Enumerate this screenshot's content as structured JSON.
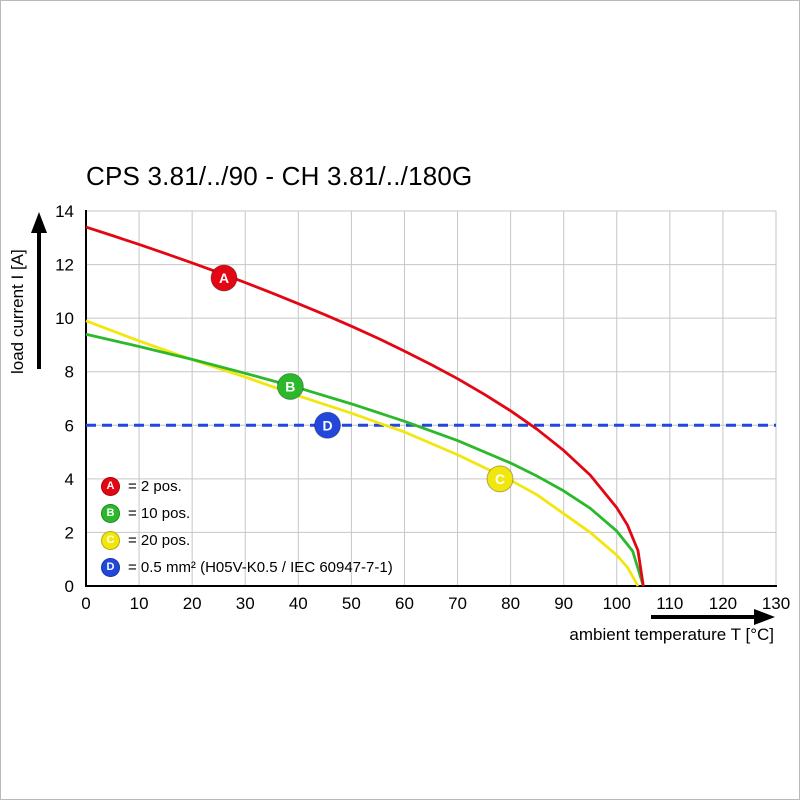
{
  "title": "CPS 3.81/../90 - CH 3.81/../180G",
  "chart_data": {
    "type": "line",
    "title": "CPS 3.81/../90 - CH 3.81/../180G",
    "xlabel": "ambient temperature T [°C]",
    "ylabel": "load current I [A]",
    "xlim": [
      0,
      130
    ],
    "ylim": [
      0,
      14
    ],
    "xticks": [
      0,
      10,
      20,
      30,
      40,
      50,
      60,
      70,
      80,
      90,
      100,
      110,
      120,
      130
    ],
    "yticks": [
      0,
      2,
      4,
      6,
      8,
      10,
      12,
      14
    ],
    "grid": true,
    "legend_position": "bottom-left-inside",
    "colors": {
      "grid": "#c6c6c6",
      "axis": "#000000"
    },
    "series": [
      {
        "name": "A",
        "label": "= 2 pos.",
        "color": "#e30613",
        "dash": false,
        "marker_at": [
          26,
          11.5
        ],
        "points": [
          [
            0,
            13.4
          ],
          [
            5,
            13.08
          ],
          [
            10,
            12.75
          ],
          [
            15,
            12.41
          ],
          [
            20,
            12.06
          ],
          [
            25,
            11.7
          ],
          [
            30,
            11.33
          ],
          [
            35,
            10.94
          ],
          [
            40,
            10.54
          ],
          [
            45,
            10.13
          ],
          [
            50,
            9.7
          ],
          [
            55,
            9.25
          ],
          [
            60,
            8.77
          ],
          [
            65,
            8.27
          ],
          [
            70,
            7.74
          ],
          [
            75,
            7.16
          ],
          [
            80,
            6.54
          ],
          [
            85,
            5.85
          ],
          [
            90,
            5.06
          ],
          [
            95,
            4.14
          ],
          [
            100,
            2.92
          ],
          [
            102,
            2.28
          ],
          [
            104,
            1.32
          ],
          [
            105,
            0
          ]
        ]
      },
      {
        "name": "B",
        "label": "= 10 pos.",
        "color": "#2bb92b",
        "dash": false,
        "marker_at": [
          38.5,
          7.45
        ],
        "points": [
          [
            0,
            9.4
          ],
          [
            10,
            8.94
          ],
          [
            20,
            8.46
          ],
          [
            30,
            7.94
          ],
          [
            40,
            7.4
          ],
          [
            50,
            6.8
          ],
          [
            60,
            6.15
          ],
          [
            70,
            5.43
          ],
          [
            80,
            4.59
          ],
          [
            85,
            4.1
          ],
          [
            90,
            3.55
          ],
          [
            95,
            2.9
          ],
          [
            100,
            2.05
          ],
          [
            103,
            1.3
          ],
          [
            105,
            0
          ]
        ]
      },
      {
        "name": "C",
        "label": "= 20 pos.",
        "color": "#f2e60f",
        "dash": false,
        "marker_at": [
          78,
          4.0
        ],
        "points": [
          [
            0,
            9.9
          ],
          [
            10,
            9.15
          ],
          [
            20,
            8.45
          ],
          [
            30,
            7.8
          ],
          [
            40,
            7.1
          ],
          [
            50,
            6.45
          ],
          [
            60,
            5.75
          ],
          [
            70,
            4.9
          ],
          [
            80,
            3.95
          ],
          [
            85,
            3.4
          ],
          [
            90,
            2.7
          ],
          [
            95,
            2.0
          ],
          [
            100,
            1.15
          ],
          [
            102,
            0.7
          ],
          [
            104,
            0
          ]
        ]
      },
      {
        "name": "D",
        "label": "= 0.5 mm² (H05V-K0.5 / IEC 60947-7-1)",
        "color": "#2247dd",
        "dash": true,
        "marker_at": [
          45.5,
          6.0
        ],
        "points": [
          [
            0,
            6
          ],
          [
            130,
            6
          ]
        ]
      }
    ]
  }
}
